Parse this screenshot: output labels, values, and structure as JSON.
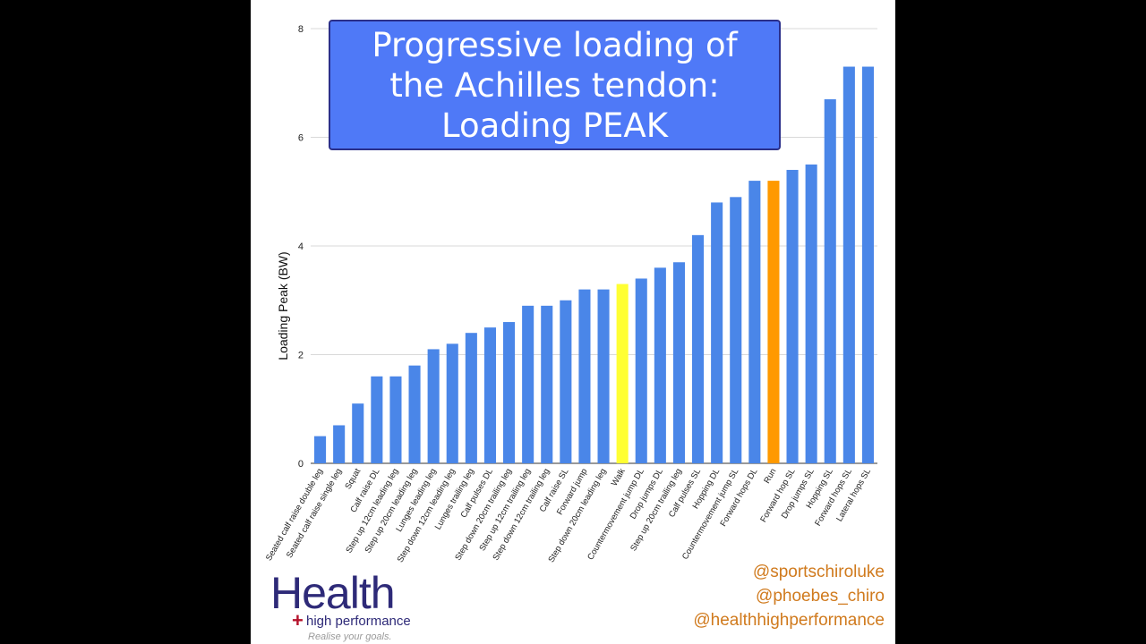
{
  "chart_data": {
    "type": "bar",
    "title": "Progressive loading of the Achilles tendon: Loading PEAK",
    "ylabel": "Loading Peak (BW)",
    "xlabel": "",
    "ylim": [
      0,
      8
    ],
    "yticks": [
      0,
      2,
      4,
      6,
      8
    ],
    "grid": true,
    "default_color": "#4a86e8",
    "categories": [
      "Seated calf raise double leg",
      "Seated calf raise single leg",
      "Squat",
      "Calf raise DL",
      "Step up 12cm leading leg",
      "Step up 20cm leading leg",
      "Lunges leading leg",
      "Step down 12cm leading leg",
      "Lunges trailing leg",
      "Calf pulses DL",
      "Step down 20cm trailing leg",
      "Step up 12cm trailing leg",
      "Step down 12cm trailing leg",
      "Calf raise SL",
      "Forward jump",
      "Step down 20cm leading leg",
      "Walk",
      "Countermovement jump DL",
      "Drop jumps DL",
      "Step up 20cm trailing leg",
      "Calf pulses SL",
      "Hopping DL",
      "Countermovement jump SL",
      "Forward hops DL",
      "Run",
      "Forward hop SL",
      "Drop jumps SL",
      "Hopping SL",
      "Forward hops SL",
      "Lateral hops SL"
    ],
    "values": [
      0.5,
      0.7,
      1.1,
      1.6,
      1.6,
      1.8,
      2.1,
      2.2,
      2.4,
      2.5,
      2.6,
      2.9,
      2.9,
      3.0,
      3.2,
      3.2,
      3.3,
      3.4,
      3.6,
      3.7,
      4.2,
      4.8,
      4.9,
      5.2,
      5.2,
      5.4,
      5.5,
      6.7,
      7.3,
      7.3
    ],
    "highlights": {
      "Walk": "#ffff33",
      "Run": "#ff9900"
    }
  },
  "title_box": {
    "text": "Progressive loading of the Achilles tendon: Loading PEAK"
  },
  "logo": {
    "name": "Health",
    "plus": "+",
    "subtitle": "high performance",
    "tagline": "Realise your goals."
  },
  "handles": [
    "@sportschiroluke",
    "@phoebes_chiro",
    "@healthhighperformance"
  ],
  "colors": {
    "title_box_bg": "#4f79f7",
    "handles": "#d07a1d",
    "logo_text": "#2e2a78",
    "logo_plus": "#b5122b"
  }
}
